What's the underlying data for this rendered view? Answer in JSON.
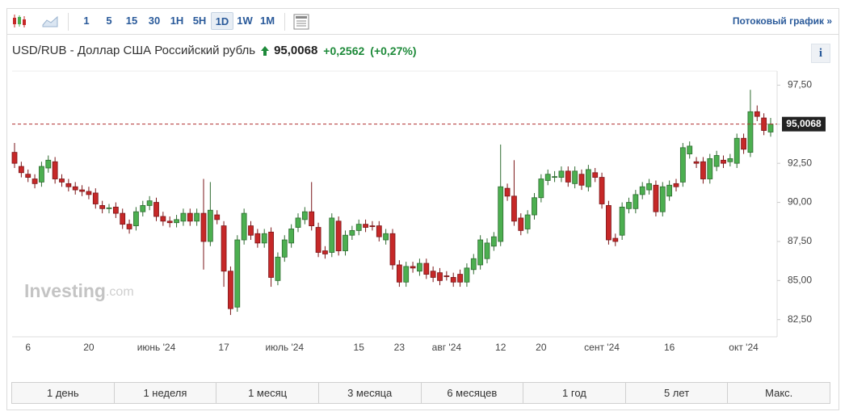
{
  "toolbar": {
    "intervals": [
      "1",
      "5",
      "15",
      "30",
      "1H",
      "5H",
      "1D",
      "1W",
      "1M"
    ],
    "selected_interval": "1D",
    "streaming_link": "Потоковый график »"
  },
  "header": {
    "title": "USD/RUB - Доллар США Российский рубль",
    "price": "95,0068",
    "change": "+0,2562",
    "change_pct": "(+0,27%)",
    "info": "i"
  },
  "watermark": {
    "brand": "Investing",
    "suffix": ".com"
  },
  "chart_data": {
    "type": "candlestick",
    "categories": [
      null,
      null,
      "6",
      null,
      null,
      null,
      null,
      null,
      null,
      null,
      null,
      "20",
      null,
      null,
      null,
      null,
      null,
      null,
      null,
      null,
      null,
      "июнь '24",
      null,
      null,
      null,
      null,
      null,
      null,
      null,
      null,
      null,
      "17",
      null,
      null,
      null,
      null,
      null,
      null,
      null,
      null,
      "июль '24",
      null,
      null,
      null,
      null,
      null,
      null,
      null,
      null,
      null,
      null,
      "15",
      null,
      null,
      null,
      null,
      null,
      "23",
      null,
      null,
      null,
      null,
      null,
      null,
      "авг '24",
      null,
      null,
      null,
      null,
      null,
      null,
      null,
      "12",
      null,
      null,
      null,
      null,
      null,
      "20",
      null,
      null,
      null,
      null,
      null,
      null,
      null,
      null,
      "сент '24",
      null,
      null,
      null,
      null,
      null,
      null,
      null,
      null,
      null,
      "16",
      null,
      null,
      null,
      null,
      null,
      null,
      null,
      null,
      null,
      null,
      "окт '24",
      null,
      null,
      null,
      null
    ],
    "open": [
      93.2,
      92.3,
      91.8,
      91.5,
      91.3,
      92.2,
      92.6,
      91.5,
      91.2,
      91.0,
      90.8,
      90.7,
      90.6,
      89.8,
      89.6,
      89.7,
      89.3,
      88.6,
      88.5,
      89.4,
      89.8,
      90.0,
      89.1,
      88.8,
      88.7,
      88.8,
      89.3,
      88.8,
      89.3,
      87.5,
      89.2,
      88.5,
      85.6,
      83.3,
      87.6,
      88.5,
      88.0,
      87.4,
      88.1,
      85.0,
      86.5,
      87.4,
      88.4,
      88.9,
      89.4,
      88.4,
      86.9,
      86.8,
      88.8,
      86.9,
      87.9,
      88.2,
      88.6,
      88.5,
      88.5,
      87.6,
      88.0,
      86.0,
      84.9,
      85.9,
      85.6,
      86.1,
      85.6,
      85.5,
      85.3,
      85.2,
      85.4,
      84.9,
      85.7,
      86.0,
      86.4,
      87.2,
      87.5,
      90.9,
      90.4,
      89.0,
      88.3,
      89.2,
      90.3,
      91.4,
      91.6,
      91.6,
      92.0,
      91.2,
      91.8,
      91.0,
      91.9,
      91.6,
      89.8,
      87.7,
      87.9,
      89.6,
      89.6,
      90.5,
      90.8,
      91.1,
      89.4,
      90.4,
      91.2,
      91.3,
      93.1,
      92.6,
      92.6,
      91.5,
      92.3,
      92.7,
      92.6,
      92.5,
      94.1,
      93.2,
      95.8,
      95.4,
      94.5
    ],
    "high": [
      93.8,
      92.6,
      92.1,
      91.8,
      92.6,
      93.0,
      92.9,
      91.8,
      91.5,
      91.3,
      91.1,
      91.0,
      90.9,
      90.1,
      89.9,
      90.0,
      89.6,
      88.9,
      89.7,
      90.1,
      90.4,
      90.3,
      89.4,
      89.1,
      89.2,
      89.6,
      89.6,
      89.6,
      91.5,
      91.3,
      89.5,
      88.8,
      85.9,
      87.9,
      89.6,
      88.8,
      88.3,
      88.3,
      88.4,
      86.8,
      87.9,
      88.6,
      89.3,
      89.7,
      91.3,
      88.7,
      87.2,
      89.3,
      89.1,
      88.2,
      88.5,
      88.9,
      88.9,
      88.8,
      88.8,
      88.3,
      88.3,
      86.3,
      86.2,
      86.2,
      86.4,
      86.4,
      85.9,
      85.8,
      85.6,
      85.5,
      85.7,
      86.1,
      86.7,
      87.9,
      87.7,
      88.1,
      93.7,
      91.2,
      92.7,
      89.3,
      89.5,
      90.6,
      91.8,
      92.1,
      92.0,
      92.3,
      92.3,
      92.3,
      92.1,
      92.4,
      92.2,
      91.9,
      90.1,
      88.0,
      90.0,
      90.3,
      90.8,
      91.3,
      91.5,
      91.4,
      91.3,
      91.4,
      91.5,
      93.8,
      93.9,
      92.9,
      92.9,
      93.1,
      93.3,
      93.0,
      93.1,
      94.4,
      94.4,
      97.2,
      96.2,
      95.7,
      95.4
    ],
    "low": [
      92.2,
      91.6,
      91.3,
      90.9,
      91.0,
      91.9,
      91.2,
      91.0,
      90.7,
      90.5,
      90.4,
      90.2,
      89.6,
      89.3,
      89.3,
      89.0,
      88.3,
      88.0,
      88.2,
      89.1,
      89.5,
      88.8,
      88.5,
      88.4,
      88.4,
      88.5,
      88.5,
      88.5,
      85.7,
      87.2,
      88.6,
      84.6,
      82.8,
      83.0,
      87.3,
      87.6,
      87.1,
      87.1,
      84.6,
      84.7,
      86.2,
      87.1,
      88.1,
      88.6,
      88.2,
      86.5,
      86.4,
      86.5,
      86.6,
      86.6,
      87.6,
      87.9,
      88.1,
      88.2,
      87.5,
      87.3,
      85.7,
      84.6,
      84.6,
      85.5,
      85.3,
      85.1,
      84.9,
      84.7,
      85.0,
      84.6,
      84.6,
      84.6,
      85.4,
      85.7,
      86.1,
      86.9,
      87.2,
      90.1,
      88.5,
      87.9,
      88.0,
      88.9,
      90.0,
      91.1,
      91.3,
      91.3,
      91.0,
      90.9,
      90.8,
      90.7,
      91.3,
      89.6,
      87.3,
      87.2,
      87.6,
      89.3,
      89.3,
      90.2,
      90.5,
      89.1,
      89.1,
      90.1,
      90.7,
      91.0,
      92.8,
      92.2,
      91.2,
      91.2,
      92.0,
      92.2,
      92.3,
      92.2,
      93.1,
      92.9,
      95.2,
      94.3,
      94.2
    ],
    "close": [
      92.5,
      91.9,
      91.6,
      91.2,
      92.3,
      92.7,
      91.5,
      91.3,
      91.0,
      90.8,
      90.7,
      90.5,
      89.9,
      89.6,
      89.65,
      89.3,
      88.6,
      88.3,
      89.4,
      89.8,
      90.1,
      89.1,
      88.8,
      88.7,
      88.9,
      89.3,
      88.8,
      89.3,
      87.5,
      89.5,
      88.9,
      85.6,
      83.2,
      87.6,
      89.3,
      87.9,
      87.4,
      88.0,
      85.2,
      86.5,
      87.6,
      88.3,
      89.0,
      89.4,
      88.5,
      86.8,
      86.7,
      89.0,
      86.9,
      87.9,
      88.2,
      88.6,
      88.4,
      88.45,
      87.8,
      88.0,
      86.0,
      84.9,
      85.9,
      85.8,
      86.1,
      85.4,
      85.2,
      85.0,
      85.25,
      84.9,
      84.9,
      85.8,
      86.4,
      87.6,
      87.4,
      87.8,
      91.0,
      90.4,
      88.8,
      88.2,
      89.2,
      90.3,
      91.5,
      91.8,
      91.65,
      92.0,
      91.3,
      92.0,
      91.1,
      92.1,
      91.6,
      89.9,
      87.6,
      87.5,
      89.7,
      90.0,
      90.5,
      91.0,
      91.2,
      89.4,
      91.0,
      91.1,
      91.0,
      93.5,
      93.6,
      92.5,
      91.5,
      92.8,
      93.0,
      92.5,
      92.8,
      94.1,
      93.4,
      95.8,
      95.5,
      94.6,
      95.0068
    ],
    "up_color": "#4caf50",
    "down_color": "#c62828",
    "ylim": [
      81.4,
      98.4
    ],
    "yticks": [
      {
        "value": 82.5,
        "label": "82,50"
      },
      {
        "value": 85,
        "label": "85,00"
      },
      {
        "value": 87.5,
        "label": "87,50"
      },
      {
        "value": 90,
        "label": "90,00"
      },
      {
        "value": 92.5,
        "label": "92,50"
      },
      {
        "value": 95,
        "label": "95,00"
      },
      {
        "value": 97.5,
        "label": "97,50"
      }
    ],
    "grid": false,
    "current_price": {
      "value": 95.0068,
      "label": "95,0068"
    }
  },
  "range_buttons": [
    "1 день",
    "1 неделя",
    "1 месяц",
    "3 месяца",
    "6 месяцев",
    "1 год",
    "5 лет",
    "Макс."
  ]
}
